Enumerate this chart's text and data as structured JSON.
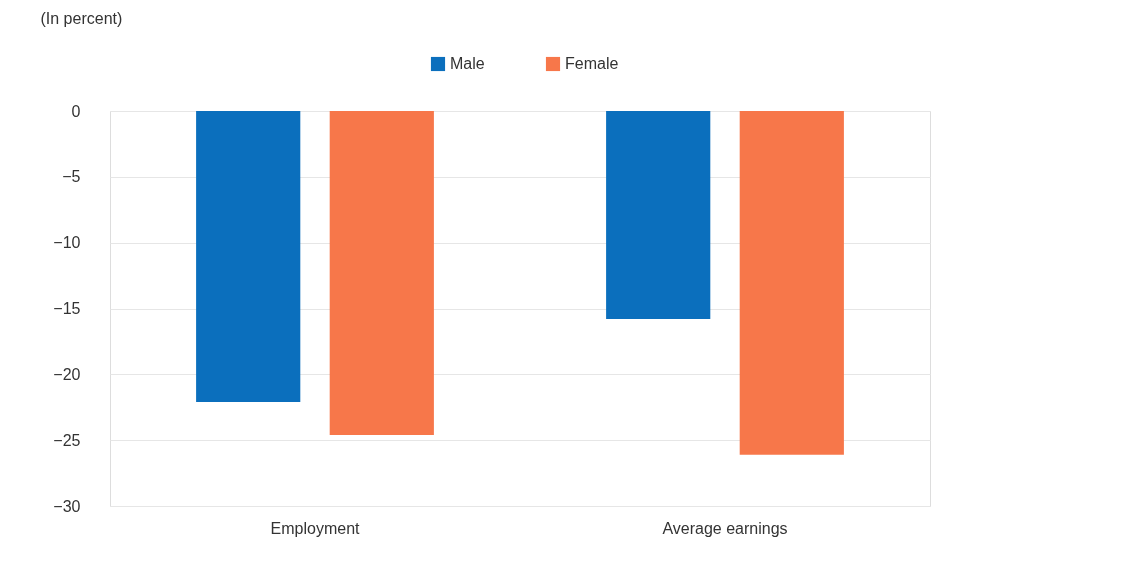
{
  "chart_data": {
    "type": "bar",
    "ylabel": "(In percent)",
    "categories": [
      "Employment",
      "Average earnings"
    ],
    "series": [
      {
        "name": "Male",
        "color": "#0b6fbd",
        "values": [
          -22.1,
          -15.8
        ]
      },
      {
        "name": "Female",
        "color": "#f7774a",
        "values": [
          -24.6,
          -26.1
        ]
      }
    ],
    "ylim": [
      -30,
      0
    ],
    "yticks": [
      0,
      -5,
      -10,
      -15,
      -20,
      -25,
      -30
    ],
    "grid": "y",
    "legend": "top"
  }
}
